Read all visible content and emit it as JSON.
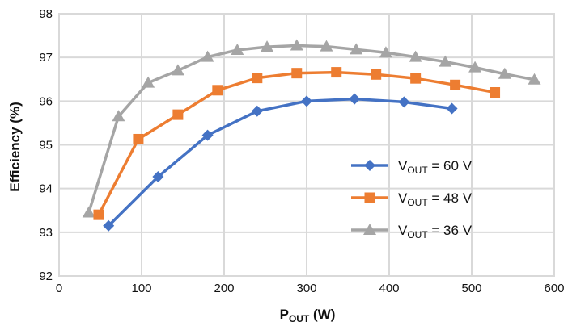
{
  "chart_data": {
    "type": "line",
    "title": "",
    "xlabel_main": "P",
    "xlabel_sub": "OUT",
    "xlabel_unit": " (W)",
    "ylabel": "Efficiency (%)",
    "xlim": [
      0,
      600
    ],
    "ylim": [
      92,
      98
    ],
    "xticks": [
      "0",
      "100",
      "200",
      "300",
      "400",
      "500",
      "600"
    ],
    "yticks": [
      "92",
      "93",
      "94",
      "95",
      "96",
      "97",
      "98"
    ],
    "grid": true,
    "legend_position": "center-right",
    "series": [
      {
        "name": "V_OUT = 60 V",
        "legend_main": "V",
        "legend_sub": "OUT",
        "legend_rest": " = 60 V",
        "color": "#4472C4",
        "marker": "diamond",
        "points": [
          [
            60,
            93.15
          ],
          [
            120,
            94.27
          ],
          [
            180,
            95.22
          ],
          [
            240,
            95.77
          ],
          [
            300,
            96.0
          ],
          [
            358,
            96.05
          ],
          [
            418,
            95.98
          ],
          [
            476,
            95.83
          ]
        ]
      },
      {
        "name": "V_OUT = 48 V",
        "legend_main": "V",
        "legend_sub": "OUT",
        "legend_rest": " = 48 V",
        "color": "#ED7D31",
        "marker": "square",
        "points": [
          [
            48,
            93.4
          ],
          [
            96,
            95.13
          ],
          [
            144,
            95.69
          ],
          [
            192,
            96.25
          ],
          [
            240,
            96.53
          ],
          [
            288,
            96.64
          ],
          [
            336,
            96.66
          ],
          [
            384,
            96.61
          ],
          [
            432,
            96.52
          ],
          [
            480,
            96.37
          ],
          [
            528,
            96.2
          ]
        ]
      },
      {
        "name": "V_OUT = 36 V",
        "legend_main": "V",
        "legend_sub": "OUT",
        "legend_rest": " = 36 V",
        "color": "#A5A5A5",
        "marker": "triangle",
        "points": [
          [
            36,
            93.45
          ],
          [
            72,
            95.65
          ],
          [
            108,
            96.42
          ],
          [
            144,
            96.7
          ],
          [
            180,
            97.01
          ],
          [
            216,
            97.17
          ],
          [
            252,
            97.24
          ],
          [
            288,
            97.27
          ],
          [
            324,
            97.25
          ],
          [
            360,
            97.18
          ],
          [
            396,
            97.11
          ],
          [
            432,
            97.01
          ],
          [
            468,
            96.9
          ],
          [
            504,
            96.77
          ],
          [
            540,
            96.62
          ],
          [
            576,
            96.49
          ]
        ]
      }
    ]
  }
}
